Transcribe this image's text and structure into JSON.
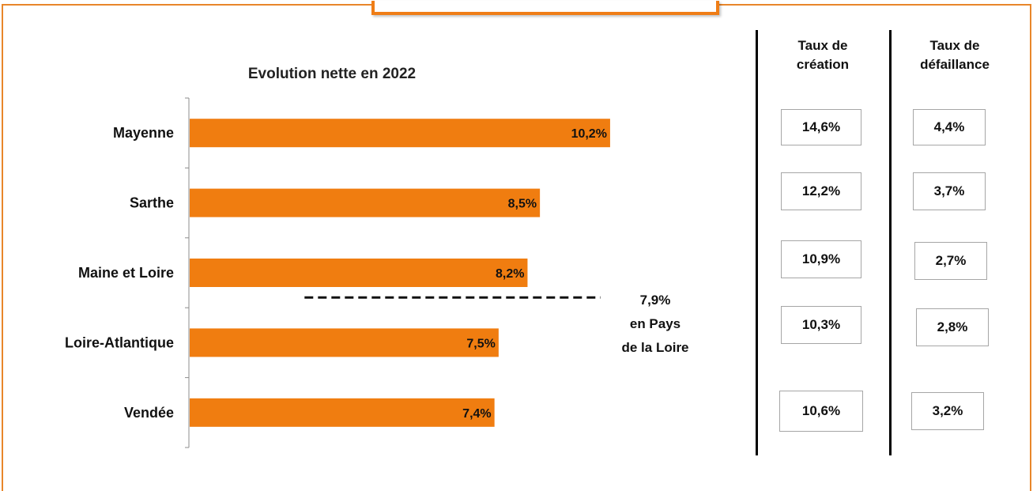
{
  "chart_data": {
    "type": "bar",
    "orientation": "horizontal",
    "title": "Evolution nette en 2022",
    "categories": [
      "Mayenne",
      "Sarthe",
      "Maine et Loire",
      "Loire-Atlantique",
      "Vendée"
    ],
    "values": [
      10.2,
      8.5,
      8.2,
      7.5,
      7.4
    ],
    "value_labels": [
      "10,2%",
      "8,5%",
      "8,2%",
      "7,5%",
      "7,4%"
    ],
    "bar_color": "#f07d10",
    "reference_line": {
      "value": 7.9,
      "label_lines": [
        "7,9%",
        "en Pays",
        "de la Loire"
      ],
      "style": "dashed"
    },
    "grid": false
  },
  "rates_table": {
    "headers": [
      [
        "Taux de",
        "création"
      ],
      [
        "Taux de",
        "défaillance"
      ]
    ],
    "creation": [
      "14,6%",
      "12,2%",
      "10,9%",
      "10,3%",
      "10,6%"
    ],
    "defaillance": [
      "4,4%",
      "3,7%",
      "2,7%",
      "2,8%",
      "3,2%"
    ]
  },
  "colors": {
    "frame": "#e8862a",
    "accent": "#ef7d16"
  }
}
